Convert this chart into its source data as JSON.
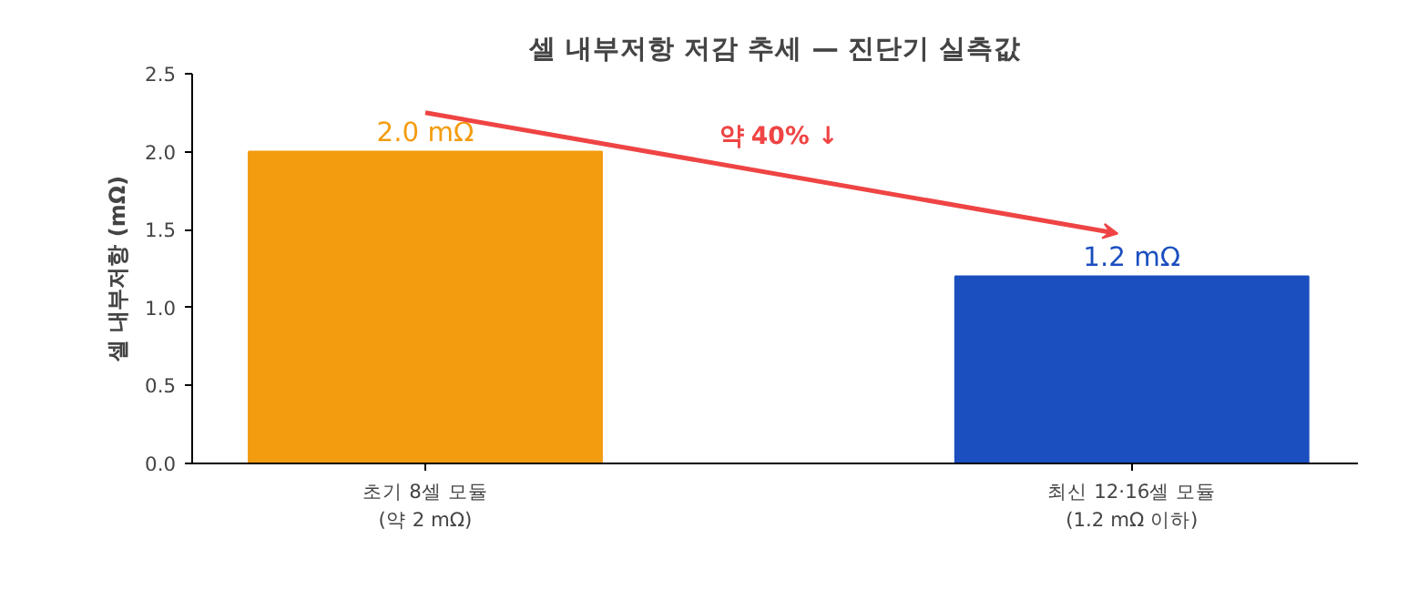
{
  "chart_data": {
    "type": "bar",
    "title": "셀 내부저항 저감 추세 — 진단기 실측값",
    "ylabel": "셀 내부저항 (mΩ)",
    "categories": [
      "초기 8셀 모듈\n(약 2 mΩ)",
      "최신 12·16셀 모듈\n(1.2 mΩ 이하)"
    ],
    "values": [
      2.0,
      1.2
    ],
    "colors": [
      "#f39c0f",
      "#1b4fbf"
    ],
    "value_labels": [
      "2.0 mΩ",
      "1.2 mΩ"
    ],
    "annotations": [
      "약 40% ↓"
    ],
    "ylim": [
      0,
      2.5
    ],
    "yticks": [
      "0.0",
      "0.5",
      "1.0",
      "1.5",
      "2.0",
      "2.5"
    ],
    "grid": false
  }
}
